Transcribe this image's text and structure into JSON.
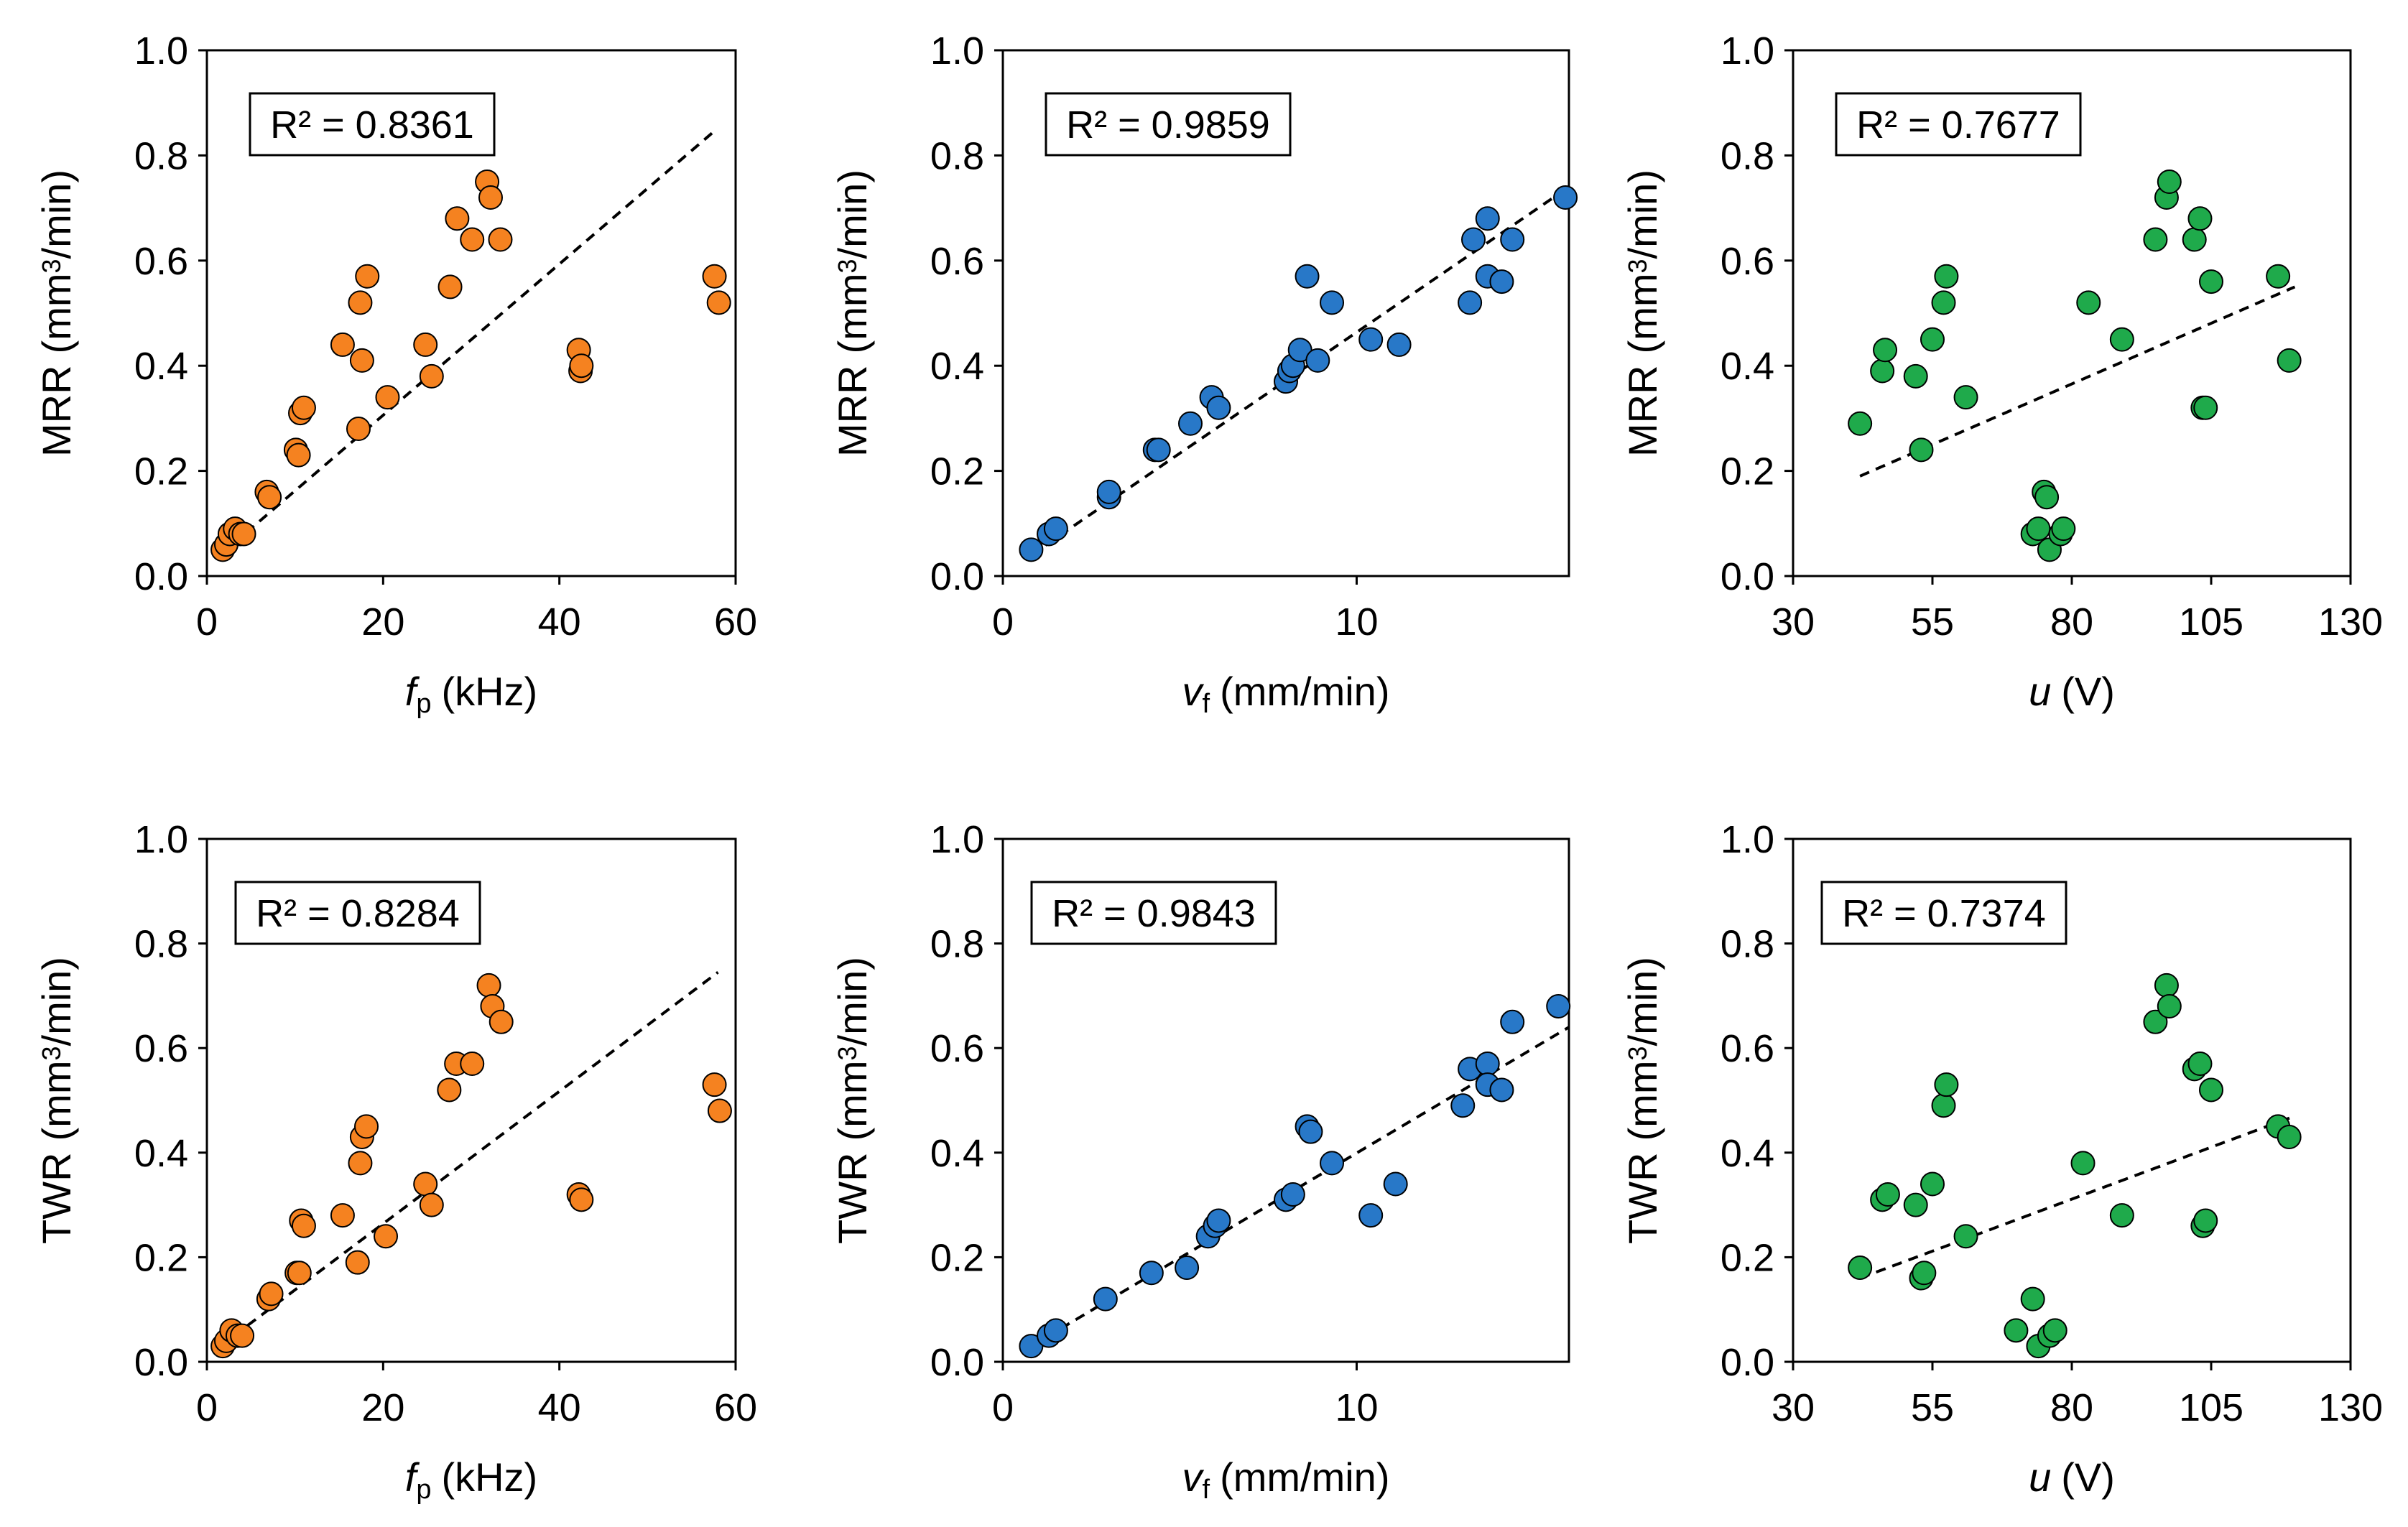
{
  "chart_data": [
    {
      "type": "scatter",
      "panel": "a",
      "ylabel_main": "MRR",
      "ylabel_unit": "(mm",
      "ylabel_sup": "3",
      "ylabel_tail": "/min)",
      "xlabel_var": "f",
      "xlabel_sub": "p",
      "xlabel_unit": "(kHz)",
      "xlim": [
        0,
        60
      ],
      "xticks": [
        0,
        20,
        40,
        60
      ],
      "ylim": [
        0,
        1
      ],
      "yticks": [
        "0.0",
        "0.2",
        "0.4",
        "0.6",
        "0.8",
        "1.0"
      ],
      "annotation": "R² = 0.8361",
      "color": "#F58220",
      "trendline": [
        [
          1.5,
          0.04
        ],
        [
          57.5,
          0.845
        ]
      ],
      "points": [
        [
          1.8,
          0.05
        ],
        [
          2.2,
          0.06
        ],
        [
          2.6,
          0.08
        ],
        [
          3.2,
          0.09
        ],
        [
          3.8,
          0.08
        ],
        [
          4.2,
          0.08
        ],
        [
          6.8,
          0.16
        ],
        [
          7.1,
          0.15
        ],
        [
          10.1,
          0.24
        ],
        [
          10.4,
          0.23
        ],
        [
          10.6,
          0.31
        ],
        [
          11,
          0.32
        ],
        [
          15.4,
          0.44
        ],
        [
          17.2,
          0.28
        ],
        [
          17.4,
          0.52
        ],
        [
          17.6,
          0.41
        ],
        [
          18.2,
          0.57
        ],
        [
          20.5,
          0.34
        ],
        [
          24.8,
          0.44
        ],
        [
          25.5,
          0.38
        ],
        [
          27.6,
          0.55
        ],
        [
          28.4,
          0.68
        ],
        [
          30.1,
          0.64
        ],
        [
          31.8,
          0.75
        ],
        [
          32.2,
          0.72
        ],
        [
          33.3,
          0.64
        ],
        [
          42.2,
          0.43
        ],
        [
          42.4,
          0.39
        ],
        [
          42.5,
          0.4
        ],
        [
          57.6,
          0.57
        ],
        [
          58.1,
          0.52
        ]
      ]
    },
    {
      "type": "scatter",
      "panel": "b",
      "ylabel_main": "MRR",
      "ylabel_unit": "(mm",
      "ylabel_sup": "3",
      "ylabel_tail": "/min)",
      "xlabel_var": "v",
      "xlabel_sub": "f",
      "xlabel_unit": "(mm/min)",
      "xlim": [
        0,
        16
      ],
      "xticks": [
        0,
        10
      ],
      "ylim": [
        0,
        1
      ],
      "yticks": [
        "0.0",
        "0.2",
        "0.4",
        "0.6",
        "0.8",
        "1.0"
      ],
      "annotation": "R² = 0.9859",
      "color": "#2878C8",
      "trendline": [
        [
          0.8,
          0.04
        ],
        [
          16,
          0.74
        ]
      ],
      "points": [
        [
          0.8,
          0.05
        ],
        [
          1.3,
          0.08
        ],
        [
          1.5,
          0.09
        ],
        [
          3,
          0.15
        ],
        [
          3,
          0.16
        ],
        [
          4.3,
          0.24
        ],
        [
          4.4,
          0.24
        ],
        [
          5.3,
          0.29
        ],
        [
          5.9,
          0.34
        ],
        [
          6.1,
          0.32
        ],
        [
          8,
          0.37
        ],
        [
          8.1,
          0.39
        ],
        [
          8.2,
          0.4
        ],
        [
          8.4,
          0.43
        ],
        [
          8.6,
          0.57
        ],
        [
          8.9,
          0.41
        ],
        [
          9.3,
          0.52
        ],
        [
          10.4,
          0.45
        ],
        [
          11.2,
          0.44
        ],
        [
          13.2,
          0.52
        ],
        [
          13.3,
          0.64
        ],
        [
          13.7,
          0.68
        ],
        [
          13.7,
          0.57
        ],
        [
          14.1,
          0.56
        ],
        [
          14.4,
          0.64
        ],
        [
          15.9,
          0.72
        ]
      ]
    },
    {
      "type": "scatter",
      "panel": "c",
      "ylabel_main": "MRR",
      "ylabel_unit": "(mm",
      "ylabel_sup": "3",
      "ylabel_tail": "/min)",
      "xlabel_var": "u",
      "xlabel_sub": "",
      "xlabel_unit": "(V)",
      "xlim": [
        30,
        130
      ],
      "xticks": [
        30,
        55,
        80,
        105,
        130
      ],
      "ylim": [
        0,
        1
      ],
      "yticks": [
        "0.0",
        "0.2",
        "0.4",
        "0.6",
        "0.8",
        "1.0"
      ],
      "annotation": "R² = 0.7677",
      "color": "#1FAA4B",
      "trendline": [
        [
          42,
          0.19
        ],
        [
          120,
          0.55
        ]
      ],
      "points": [
        [
          42,
          0.29
        ],
        [
          46,
          0.39
        ],
        [
          46.5,
          0.43
        ],
        [
          52,
          0.38
        ],
        [
          53,
          0.24
        ],
        [
          55,
          0.45
        ],
        [
          57,
          0.52
        ],
        [
          57.5,
          0.57
        ],
        [
          61,
          0.34
        ],
        [
          73,
          0.08
        ],
        [
          74,
          0.09
        ],
        [
          75,
          0.16
        ],
        [
          75.5,
          0.15
        ],
        [
          76,
          0.05
        ],
        [
          78,
          0.08
        ],
        [
          78.5,
          0.09
        ],
        [
          83,
          0.52
        ],
        [
          89,
          0.45
        ],
        [
          95,
          0.64
        ],
        [
          97,
          0.72
        ],
        [
          97.5,
          0.75
        ],
        [
          102,
          0.64
        ],
        [
          103,
          0.68
        ],
        [
          103.5,
          0.32
        ],
        [
          104,
          0.32
        ],
        [
          105,
          0.56
        ],
        [
          117,
          0.57
        ],
        [
          119,
          0.41
        ]
      ]
    },
    {
      "type": "scatter",
      "panel": "d",
      "ylabel_main": "TWR",
      "ylabel_unit": "(mm",
      "ylabel_sup": "3",
      "ylabel_tail": "/min)",
      "xlabel_var": "f",
      "xlabel_sub": "p",
      "xlabel_unit": "(kHz)",
      "xlim": [
        0,
        60
      ],
      "xticks": [
        0,
        20,
        40,
        60
      ],
      "ylim": [
        0,
        1
      ],
      "yticks": [
        "0.0",
        "0.2",
        "0.4",
        "0.6",
        "0.8",
        "1.0"
      ],
      "annotation": "R² = 0.8284",
      "color": "#F58220",
      "trendline": [
        [
          1.5,
          0.03
        ],
        [
          58,
          0.745
        ]
      ],
      "points": [
        [
          1.8,
          0.03
        ],
        [
          2.2,
          0.04
        ],
        [
          2.8,
          0.06
        ],
        [
          3.5,
          0.05
        ],
        [
          4,
          0.05
        ],
        [
          7,
          0.12
        ],
        [
          7.3,
          0.13
        ],
        [
          10.2,
          0.17
        ],
        [
          10.5,
          0.17
        ],
        [
          10.7,
          0.27
        ],
        [
          11,
          0.26
        ],
        [
          15.4,
          0.28
        ],
        [
          17.1,
          0.19
        ],
        [
          17.4,
          0.38
        ],
        [
          17.6,
          0.43
        ],
        [
          18.1,
          0.45
        ],
        [
          20.3,
          0.24
        ],
        [
          24.8,
          0.34
        ],
        [
          25.5,
          0.3
        ],
        [
          27.5,
          0.52
        ],
        [
          28.3,
          0.57
        ],
        [
          30.1,
          0.57
        ],
        [
          32,
          0.72
        ],
        [
          32.4,
          0.68
        ],
        [
          33.4,
          0.65
        ],
        [
          42.2,
          0.32
        ],
        [
          42.5,
          0.31
        ],
        [
          57.6,
          0.53
        ],
        [
          58.2,
          0.48
        ]
      ]
    },
    {
      "type": "scatter",
      "panel": "e",
      "ylabel_main": "TWR",
      "ylabel_unit": "(mm",
      "ylabel_sup": "3",
      "ylabel_tail": "/min)",
      "xlabel_var": "v",
      "xlabel_sub": "f",
      "xlabel_unit": "(mm/min)",
      "xlim": [
        0,
        16
      ],
      "xticks": [
        0,
        10
      ],
      "ylim": [
        0,
        1
      ],
      "yticks": [
        "0.0",
        "0.2",
        "0.4",
        "0.6",
        "0.8",
        "1.0"
      ],
      "annotation": "R² = 0.9843",
      "color": "#2878C8",
      "trendline": [
        [
          0.8,
          0.03
        ],
        [
          16,
          0.64
        ]
      ],
      "points": [
        [
          0.8,
          0.03
        ],
        [
          1.3,
          0.05
        ],
        [
          1.5,
          0.06
        ],
        [
          2.9,
          0.12
        ],
        [
          4.2,
          0.17
        ],
        [
          5.2,
          0.18
        ],
        [
          5.8,
          0.24
        ],
        [
          6,
          0.26
        ],
        [
          6.1,
          0.27
        ],
        [
          8,
          0.31
        ],
        [
          8.2,
          0.32
        ],
        [
          8.6,
          0.45
        ],
        [
          8.7,
          0.44
        ],
        [
          9.3,
          0.38
        ],
        [
          10.4,
          0.28
        ],
        [
          11.1,
          0.34
        ],
        [
          13,
          0.49
        ],
        [
          13.2,
          0.56
        ],
        [
          13.7,
          0.57
        ],
        [
          13.7,
          0.53
        ],
        [
          14.1,
          0.52
        ],
        [
          14.4,
          0.65
        ],
        [
          15.7,
          0.68
        ]
      ]
    },
    {
      "type": "scatter",
      "panel": "f",
      "ylabel_main": "TWR",
      "ylabel_unit": "(mm",
      "ylabel_sup": "3",
      "ylabel_tail": "/min)",
      "xlabel_var": "u",
      "xlabel_sub": "",
      "xlabel_unit": "(V)",
      "xlim": [
        30,
        130
      ],
      "xticks": [
        30,
        55,
        80,
        105,
        130
      ],
      "ylim": [
        0,
        1
      ],
      "yticks": [
        "0.0",
        "0.2",
        "0.4",
        "0.6",
        "0.8",
        "1.0"
      ],
      "annotation": "R² = 0.7374",
      "color": "#1FAA4B",
      "trendline": [
        [
          42,
          0.16
        ],
        [
          120,
          0.47
        ]
      ],
      "points": [
        [
          42,
          0.18
        ],
        [
          46,
          0.31
        ],
        [
          47,
          0.32
        ],
        [
          52,
          0.3
        ],
        [
          53,
          0.16
        ],
        [
          53.5,
          0.17
        ],
        [
          55,
          0.34
        ],
        [
          57,
          0.49
        ],
        [
          57.5,
          0.53
        ],
        [
          61,
          0.24
        ],
        [
          70,
          0.06
        ],
        [
          73,
          0.12
        ],
        [
          74,
          0.03
        ],
        [
          76,
          0.05
        ],
        [
          77,
          0.06
        ],
        [
          82,
          0.38
        ],
        [
          89,
          0.28
        ],
        [
          95,
          0.65
        ],
        [
          97,
          0.72
        ],
        [
          97.5,
          0.68
        ],
        [
          102,
          0.56
        ],
        [
          103,
          0.57
        ],
        [
          103.5,
          0.26
        ],
        [
          104,
          0.27
        ],
        [
          105,
          0.52
        ],
        [
          117,
          0.45
        ],
        [
          119,
          0.43
        ]
      ]
    }
  ]
}
